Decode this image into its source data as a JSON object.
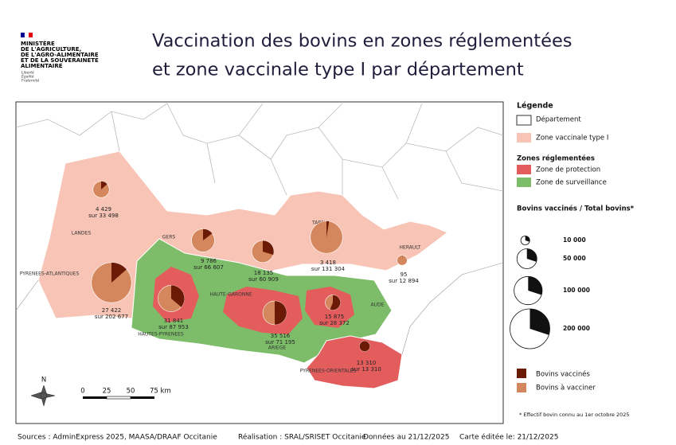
{
  "header": {
    "ministry": [
      "MINISTÈRE",
      "DE L'AGRICULTURE,",
      "DE L'AGRO-ALIMENTAIRE",
      "ET DE LA SOUVERAINETÉ",
      "ALIMENTAIRE"
    ],
    "motto": [
      "Liberté",
      "Égalité",
      "Fraternité"
    ],
    "title": [
      "Vaccination  des bovins en zones réglementées",
      "et zone vaccinale type I par département"
    ]
  },
  "map_labels": [
    "LANDES",
    "GERS",
    "TARN",
    "HERAULT",
    "PYRENEES-ATLANTIQUES",
    "HAUTE-GARONNE",
    "HAUTES-PYRENEES",
    "ARIEGE",
    "AUDE",
    "PYRENEES-ORIENTALES"
  ],
  "pies": [
    {
      "vaccinated": {
        "value": 4429,
        "label": "4 429"
      },
      "total": {
        "value": 33498,
        "label": "sur 33 498"
      }
    },
    {
      "vaccinated": {
        "value": 9786,
        "label": "9 786"
      },
      "total": {
        "value": 66607,
        "label": "sur 66 607"
      }
    },
    {
      "vaccinated": {
        "value": 18135,
        "label": "18 135"
      },
      "total": {
        "value": 60909,
        "label": "sur 60 909"
      }
    },
    {
      "vaccinated": {
        "value": 3418,
        "label": "3 418"
      },
      "total": {
        "value": 131304,
        "label": "sur 131 304"
      }
    },
    {
      "vaccinated": {
        "value": 95,
        "label": "95"
      },
      "total": {
        "value": 12894,
        "label": "sur 12 894"
      }
    },
    {
      "vaccinated": {
        "value": 27422,
        "label": "27 422"
      },
      "total": {
        "value": 202677,
        "label": "sur 202 677"
      }
    },
    {
      "vaccinated": {
        "value": 31841,
        "label": "31 841"
      },
      "total": {
        "value": 87953,
        "label": "sur 87 953"
      }
    },
    {
      "vaccinated": {
        "value": 35516,
        "label": "35 516"
      },
      "total": {
        "value": 71195,
        "label": "sur 71 195"
      }
    },
    {
      "vaccinated": {
        "value": 15875,
        "label": "15 875"
      },
      "total": {
        "value": 28372,
        "label": "sur 28 372"
      }
    },
    {
      "vaccinated": {
        "value": 13310,
        "label": "13 310"
      },
      "total": {
        "value": 13310,
        "label": "sur 13 310"
      }
    }
  ],
  "legend": {
    "title": "Légende",
    "department": "Département",
    "vaccinal_zone": "Zone vaccinale type I",
    "regulated_title": "Zones réglementées",
    "protection": "Zone de protection",
    "surveillance": "Zone de surveillance",
    "size_title": "Bovins vaccinés / Total bovins*",
    "sizes": [
      {
        "value": 10000,
        "label": "10 000"
      },
      {
        "value": 50000,
        "label": "50 000"
      },
      {
        "value": 100000,
        "label": "100 000"
      },
      {
        "value": 200000,
        "label": "200 000"
      }
    ],
    "vaccinated": "Bovins vaccinés",
    "to_vaccinate": "Bovins à vacciner",
    "colors": {
      "vaccinated": "#6b1a05",
      "to_vaccinate": "#d4865c",
      "vaccinal_zone": "#f7c4b5",
      "protection": "#e35d5d",
      "surveillance": "#7dbd6a"
    }
  },
  "scale": {
    "north": "N",
    "ticks": [
      "0",
      "25",
      "50",
      "75 km"
    ]
  },
  "note": "* Effectif bovin connu au 1er octobre 2025",
  "footer": [
    "Sources : AdminExpress 2025, MAASA/DRAAF Occitanie",
    "Réalisation : SRAL/SRISET Occitanie",
    "Données au 21/12/2025",
    "Carte éditée le:  21/12/2025"
  ]
}
